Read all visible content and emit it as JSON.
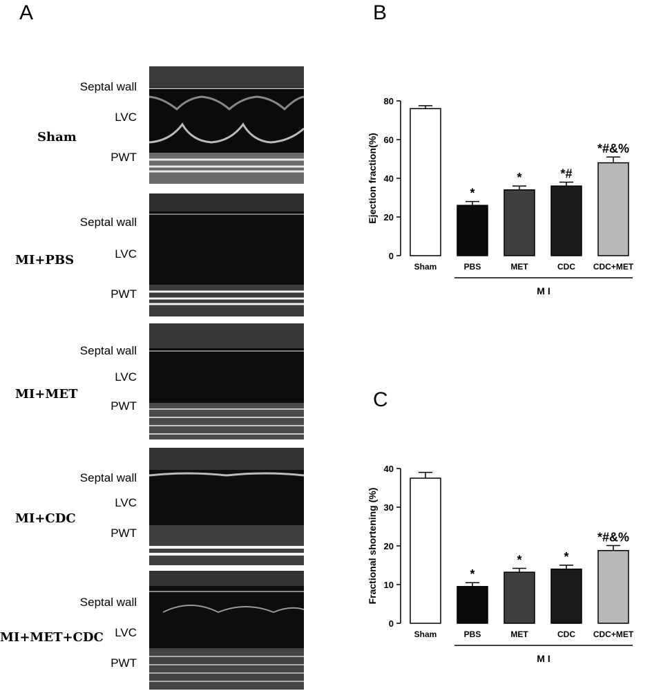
{
  "panels": {
    "a": "A",
    "b": "B",
    "c": "C"
  },
  "echo_rows": [
    {
      "group": "Sham",
      "septal": "Septal wall",
      "lvc": "LVC",
      "pwt": "PWT"
    },
    {
      "group": "MI+PBS",
      "septal": "Septal wall",
      "lvc": "LVC",
      "pwt": "PWT"
    },
    {
      "group": "MI+MET",
      "septal": "Septal wall",
      "lvc": "LVC",
      "pwt": "PWT"
    },
    {
      "group": "MI+CDC",
      "septal": "Septal wall",
      "lvc": "LVC",
      "pwt": "PWT"
    },
    {
      "group": "MI+MET+CDC",
      "septal": "Septal wall",
      "lvc": "LVC",
      "pwt": "PWT"
    }
  ],
  "chart_data": [
    {
      "type": "bar",
      "panel": "B",
      "ylabel": "Ejection fraction(%)",
      "categories": [
        "Sham",
        "PBS",
        "MET",
        "CDC",
        "CDC+MET"
      ],
      "values": [
        76,
        26,
        34,
        36,
        48
      ],
      "errors": [
        1.5,
        2,
        2,
        2,
        3
      ],
      "annotations": [
        "",
        "*",
        "*",
        "*#",
        "*#&%"
      ],
      "bar_colors": [
        "#ffffff",
        "#0a0a0a",
        "#404040",
        "#1a1a1a",
        "#b8b8b8"
      ],
      "ylim": [
        0,
        80
      ],
      "yticks": [
        0,
        20,
        40,
        60,
        80
      ],
      "group_label": "M I"
    },
    {
      "type": "bar",
      "panel": "C",
      "ylabel": "Fractional shortening (%)",
      "categories": [
        "Sham",
        "PBS",
        "MET",
        "CDC",
        "CDC+MET"
      ],
      "values": [
        37.5,
        9.5,
        13.2,
        14,
        18.8
      ],
      "errors": [
        1.5,
        1,
        1,
        1,
        1.3
      ],
      "annotations": [
        "",
        "*",
        "*",
        "*",
        "*#&%"
      ],
      "bar_colors": [
        "#ffffff",
        "#0a0a0a",
        "#404040",
        "#1a1a1a",
        "#b8b8b8"
      ],
      "ylim": [
        0,
        40
      ],
      "yticks": [
        0,
        10,
        20,
        30,
        40
      ],
      "group_label": "M I"
    }
  ]
}
